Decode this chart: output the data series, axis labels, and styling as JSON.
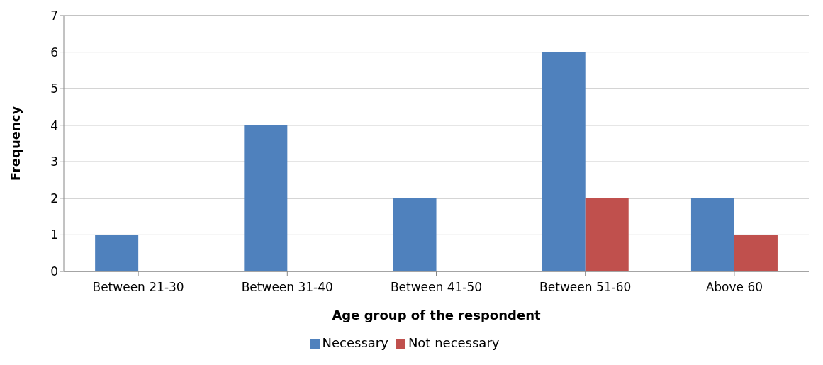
{
  "chart_data": {
    "type": "bar",
    "xlabel": "Age group of the respondent",
    "ylabel": "Frequency",
    "categories": [
      "Between 21-30",
      "Between 31-40",
      "Between 41-50",
      "Between 51-60",
      "Above 60"
    ],
    "series": [
      {
        "name": "Necessary",
        "color": "#4f81bd",
        "values": [
          1,
          4,
          2,
          6,
          2
        ]
      },
      {
        "name": "Not necessary",
        "color": "#c0504d",
        "values": [
          0,
          0,
          0,
          2,
          1
        ]
      }
    ],
    "ylim": [
      0,
      7
    ],
    "yticks": [
      0,
      1,
      2,
      3,
      4,
      5,
      6,
      7
    ],
    "grid": "y",
    "legend": "bottom"
  }
}
